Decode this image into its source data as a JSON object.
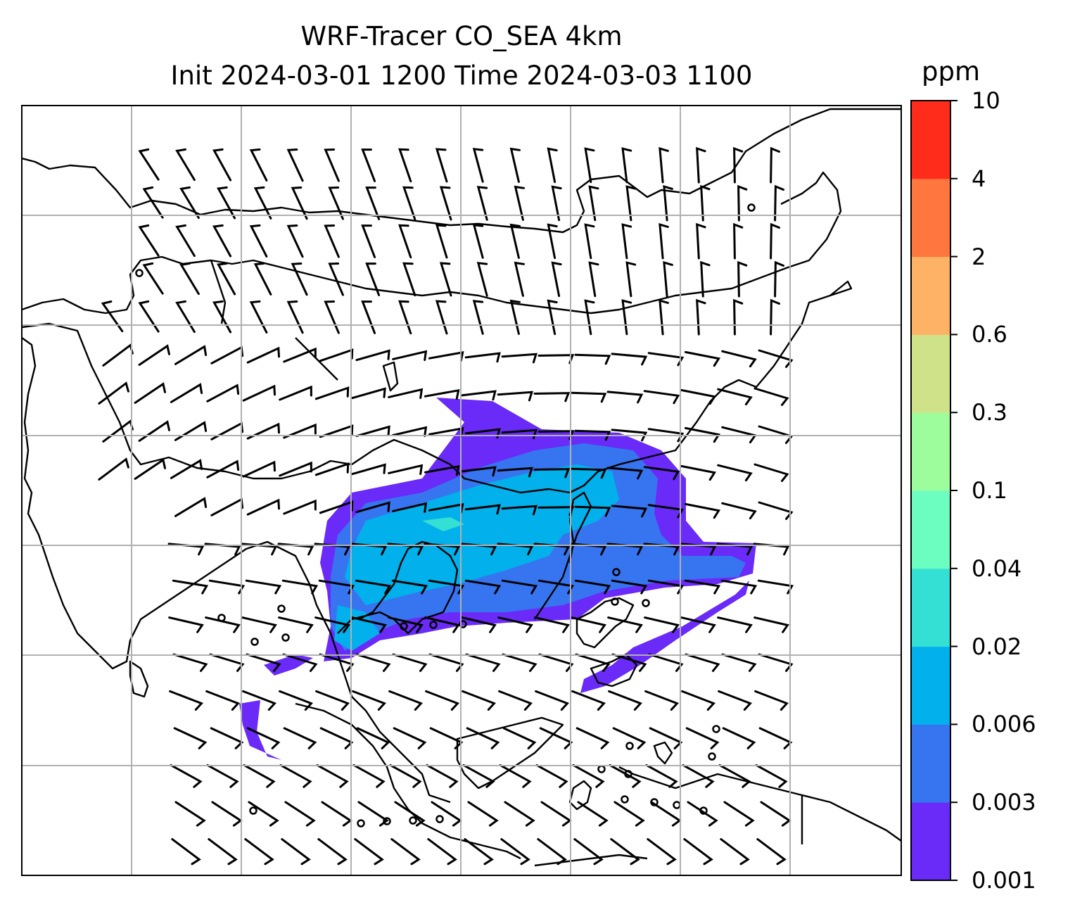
{
  "title": {
    "line1": "WRF-Tracer CO_SEA 4km",
    "line2": "Init 2024-03-01 1200 Time 2024-03-03 1100"
  },
  "colorbar": {
    "unit": "ppm",
    "ticks": [
      "0.001",
      "0.003",
      "0.006",
      "0.02",
      "0.04",
      "0.1",
      "0.3",
      "0.6",
      "2",
      "4",
      "10"
    ],
    "colors": [
      "#6a2af8",
      "#3775f0",
      "#02b1ec",
      "#34dfd3",
      "#6cfdc0",
      "#9dfc9b",
      "#cfe289",
      "#feb265",
      "#ff763f",
      "#ff2c1c"
    ]
  },
  "colors": {
    "coastline": "#000000",
    "gridline": "#b0b0b0",
    "barb": "#000000"
  }
}
